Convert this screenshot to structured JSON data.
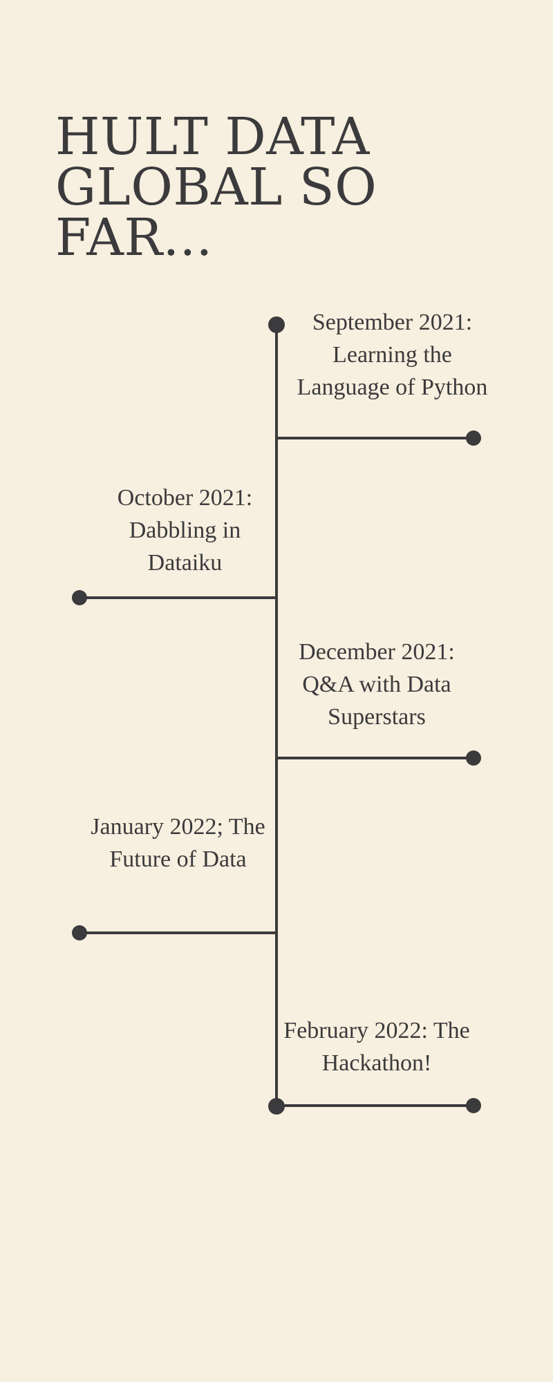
{
  "title": "HULT DATA GLOBAL SO FAR...",
  "colors": {
    "background": "#f7efdf",
    "ink": "#3b3a3c"
  },
  "events": [
    {
      "text": "September 2021: Learning the Language of Python",
      "side": "right"
    },
    {
      "text": "October 2021: Dabbling in Dataiku",
      "side": "left"
    },
    {
      "text": "December 2021: Q&A with Data Superstars",
      "side": "right"
    },
    {
      "text": "January 2022; The Future of Data",
      "side": "left"
    },
    {
      "text": "February 2022: The Hackathon!",
      "side": "right"
    }
  ]
}
